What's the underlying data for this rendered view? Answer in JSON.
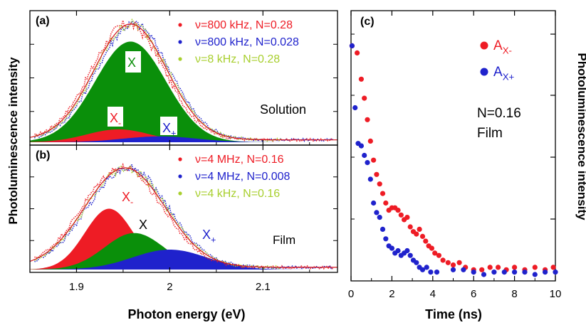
{
  "chart_data": [
    {
      "type": "area",
      "panel": "(a)",
      "xlabel": "Photon energy (eV)",
      "ylabel": "Photoluminescence intensity",
      "xlim": [
        1.85,
        2.18
      ],
      "ylim": [
        0,
        1.1
      ],
      "x_ticks": [
        "1.9",
        "2",
        "2.1"
      ],
      "note": "Solution",
      "legend": [
        {
          "label": "ν=800 kHz, N=0.28",
          "color": "#ee1c25"
        },
        {
          "label": "ν=800 kHz, N=0.028",
          "color": "#1f22cc"
        },
        {
          "label": "ν=8 kHz, N=0.28",
          "color": "#a8cf2e"
        }
      ],
      "components": [
        {
          "base": "X",
          "sub": "",
          "color": "#0a8f0a",
          "center": 1.958,
          "amplitude": 0.86,
          "width": 0.038
        },
        {
          "base": "X",
          "sub": "-",
          "color": "#ee1c25",
          "center": 1.945,
          "amplitude": 0.11,
          "width": 0.034
        },
        {
          "base": "X",
          "sub": "+",
          "color": "#1f22cc",
          "center": 1.99,
          "amplitude": 0.05,
          "width": 0.04
        }
      ],
      "total_fit": {
        "center": 1.958,
        "amplitude": 0.99,
        "width": 0.039
      }
    },
    {
      "type": "area",
      "panel": "(b)",
      "xlabel": "Photon energy (eV)",
      "ylabel": "Photoluminescence intensity",
      "xlim": [
        1.85,
        2.18
      ],
      "ylim": [
        0,
        1.1
      ],
      "x_ticks": [
        "1.9",
        "2",
        "2.1"
      ],
      "note": "Film",
      "legend": [
        {
          "label": "ν=4 MHz, N=0.16",
          "color": "#ee1c25"
        },
        {
          "label": "ν=4 MHz, N=0.008",
          "color": "#1f22cc"
        },
        {
          "label": "ν=4 kHz, N=0.16",
          "color": "#a8cf2e"
        }
      ],
      "components": [
        {
          "base": "X",
          "sub": "-",
          "color": "#ee1c25",
          "center": 1.935,
          "amplitude": 0.55,
          "width": 0.026
        },
        {
          "base": "X",
          "sub": "",
          "color": "#0a8f0a",
          "center": 1.962,
          "amplitude": 0.33,
          "width": 0.032
        },
        {
          "base": "X",
          "sub": "+",
          "color": "#1f22cc",
          "center": 2.0,
          "amplitude": 0.18,
          "width": 0.04
        }
      ],
      "total_fit": {
        "center": 1.952,
        "amplitude": 0.9,
        "width": 0.043
      }
    },
    {
      "type": "scatter",
      "panel": "(c)",
      "xlabel": "Time (ns)",
      "ylabel": "Photoluminescence intensity",
      "xlim": [
        0,
        10
      ],
      "ylim": [
        0,
        1.0
      ],
      "x_ticks": [
        "0",
        "2",
        "4",
        "6",
        "8",
        "10"
      ],
      "note_lines": [
        "N=0.16",
        "Film"
      ],
      "series": [
        {
          "name": "A",
          "sub": "X-",
          "color": "#ee1c25",
          "x": [
            0.05,
            0.3,
            0.5,
            0.65,
            0.8,
            0.95,
            1.1,
            1.25,
            1.4,
            1.55,
            1.7,
            1.85,
            2.0,
            2.15,
            2.3,
            2.45,
            2.6,
            2.75,
            2.9,
            3.05,
            3.2,
            3.35,
            3.5,
            3.65,
            3.8,
            3.95,
            4.1,
            4.3,
            4.5,
            4.75,
            5.0,
            5.3,
            5.6,
            6.0,
            6.4,
            6.8,
            7.2,
            7.6,
            8.0,
            8.5,
            9.0,
            9.5,
            9.9
          ],
          "y": [
            0.96,
            0.93,
            0.82,
            0.74,
            0.65,
            0.56,
            0.48,
            0.42,
            0.38,
            0.34,
            0.3,
            0.27,
            0.28,
            0.28,
            0.27,
            0.25,
            0.23,
            0.24,
            0.2,
            0.18,
            0.17,
            0.19,
            0.16,
            0.14,
            0.12,
            0.11,
            0.09,
            0.08,
            0.06,
            0.05,
            0.04,
            0.05,
            0.03,
            0.02,
            0.02,
            0.03,
            0.03,
            0.02,
            0.03,
            0.02,
            0.03,
            0.02,
            0.03
          ]
        },
        {
          "name": "A",
          "sub": "X+",
          "color": "#1f22cc",
          "x": [
            0.05,
            0.2,
            0.35,
            0.5,
            0.65,
            0.8,
            0.95,
            1.1,
            1.25,
            1.4,
            1.55,
            1.7,
            1.85,
            2.0,
            2.15,
            2.3,
            2.45,
            2.6,
            2.75,
            2.9,
            3.05,
            3.2,
            3.35,
            3.5,
            3.7,
            3.9,
            4.2,
            5.0,
            5.5,
            6.0,
            6.5,
            7.0,
            7.5,
            8.0,
            8.5,
            9.0,
            9.5,
            10.0
          ],
          "y": [
            0.96,
            0.7,
            0.55,
            0.54,
            0.5,
            0.47,
            0.4,
            0.3,
            0.26,
            0.24,
            0.19,
            0.15,
            0.12,
            0.11,
            0.09,
            0.1,
            0.08,
            0.09,
            0.1,
            0.08,
            0.06,
            0.05,
            0.03,
            0.02,
            0.03,
            0.01,
            0.01,
            0.02,
            0.02,
            0.01,
            0.0,
            0.01,
            0.01,
            0.01,
            0.01,
            0.0,
            0.01,
            0.01
          ]
        }
      ]
    }
  ]
}
